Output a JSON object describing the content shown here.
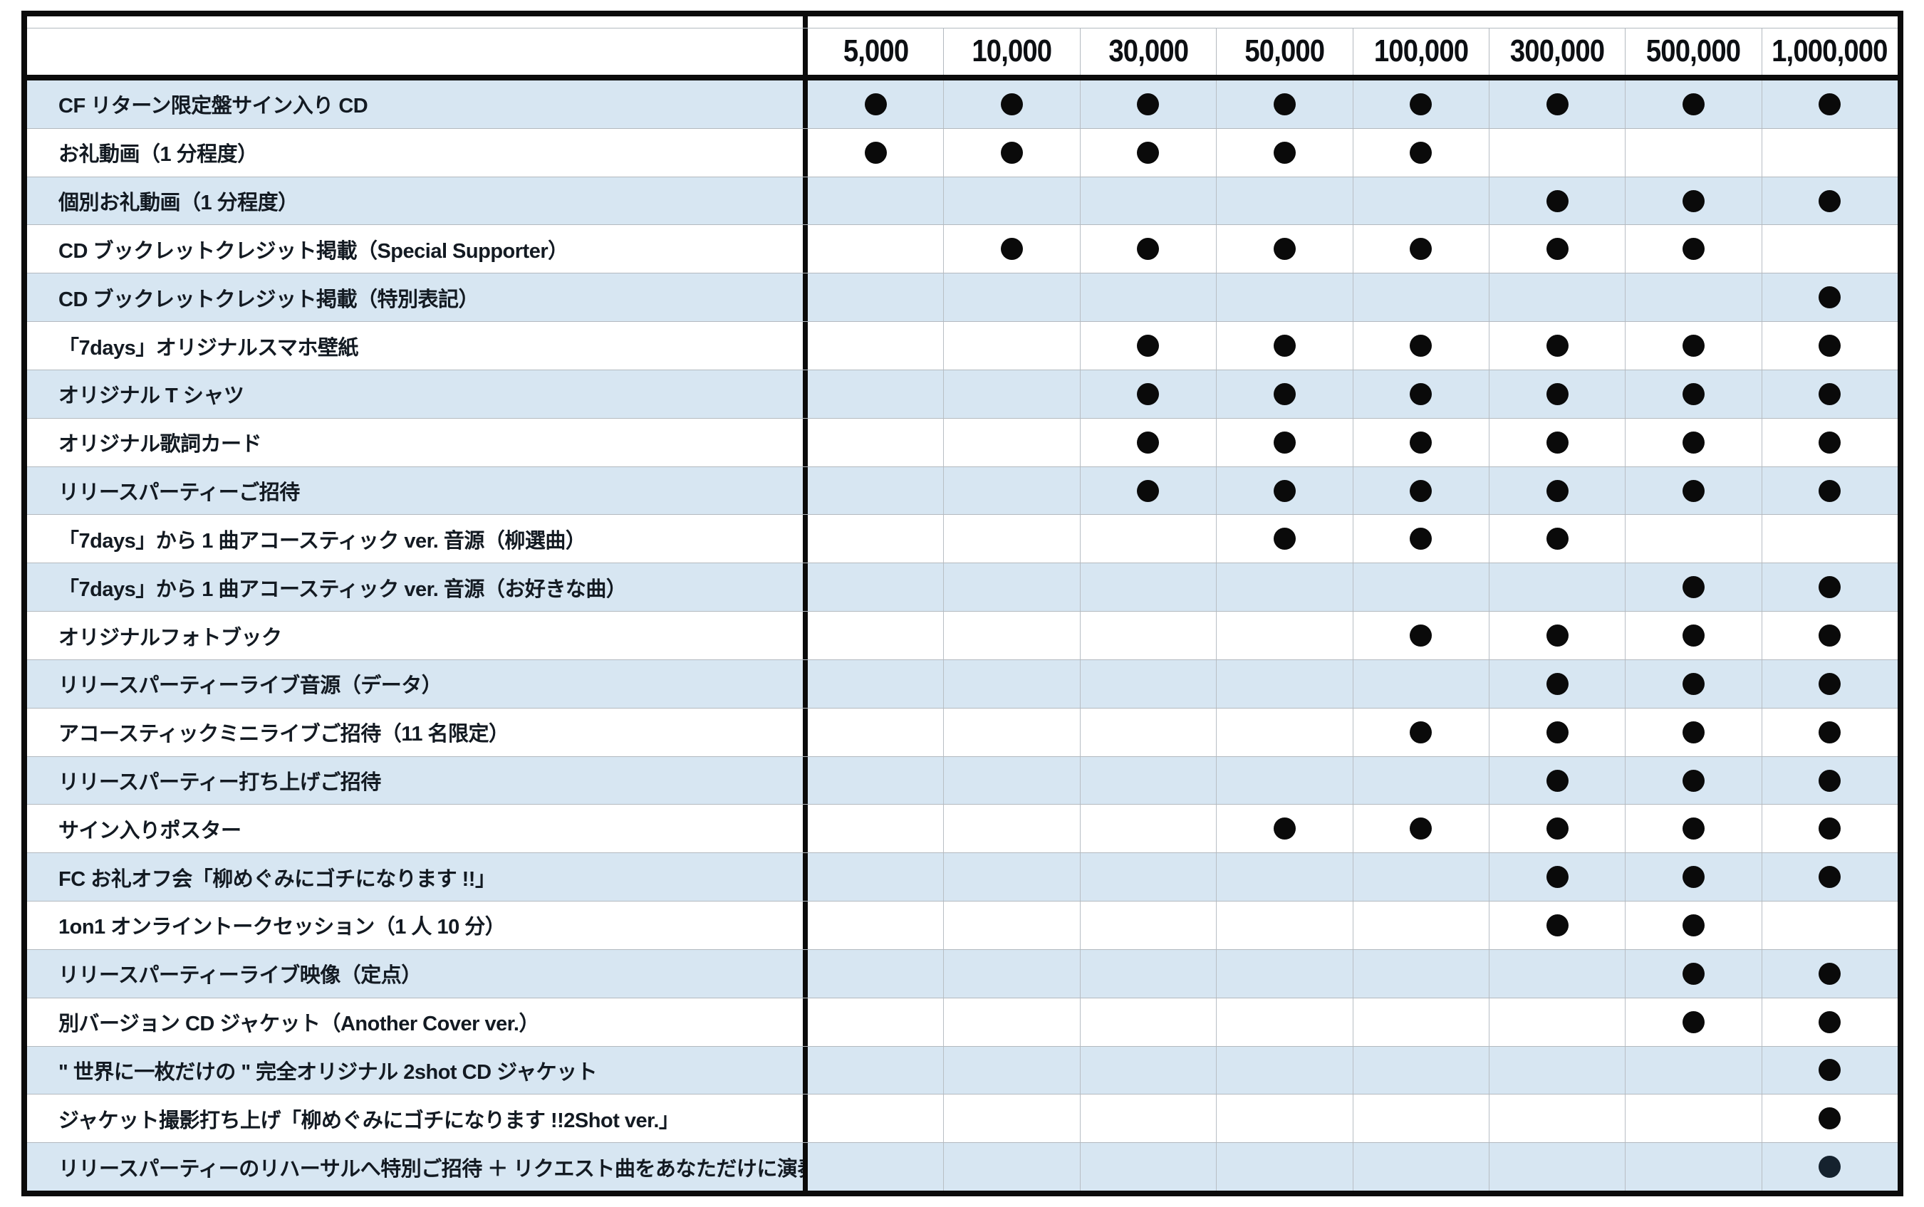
{
  "colors": {
    "stripe_blue": "#d7e6f2",
    "grid_line": "#b3b9bf",
    "outer_border": "#0b0b0b",
    "dot": "#0a0a0a",
    "last_row_dot": "#15222e",
    "label_text": "#131a22"
  },
  "table": {
    "corner_label": "",
    "columns": [
      "5,000",
      "10,000",
      "30,000",
      "50,000",
      "100,000",
      "300,000",
      "500,000",
      "1,000,000"
    ],
    "rows": [
      {
        "label": "CF リターン限定盤サイン入り CD",
        "dots": [
          1,
          1,
          1,
          1,
          1,
          1,
          1,
          1
        ]
      },
      {
        "label": "お礼動画（1 分程度）",
        "dots": [
          1,
          1,
          1,
          1,
          1,
          0,
          0,
          0
        ]
      },
      {
        "label": "個別お礼動画（1 分程度）",
        "dots": [
          0,
          0,
          0,
          0,
          0,
          1,
          1,
          1
        ]
      },
      {
        "label": "CD ブックレットクレジット掲載（Special Supporter）",
        "dots": [
          0,
          1,
          1,
          1,
          1,
          1,
          1,
          0
        ]
      },
      {
        "label": "CD ブックレットクレジット掲載（特別表記）",
        "dots": [
          0,
          0,
          0,
          0,
          0,
          0,
          0,
          1
        ]
      },
      {
        "label": "「7days」オリジナルスマホ壁紙",
        "dots": [
          0,
          0,
          1,
          1,
          1,
          1,
          1,
          1
        ]
      },
      {
        "label": "オリジナル T シャツ",
        "dots": [
          0,
          0,
          1,
          1,
          1,
          1,
          1,
          1
        ]
      },
      {
        "label": "オリジナル歌詞カード",
        "dots": [
          0,
          0,
          1,
          1,
          1,
          1,
          1,
          1
        ]
      },
      {
        "label": "リリースパーティーご招待",
        "dots": [
          0,
          0,
          1,
          1,
          1,
          1,
          1,
          1
        ]
      },
      {
        "label": "「7days」から 1 曲アコースティック ver. 音源（柳選曲）",
        "dots": [
          0,
          0,
          0,
          1,
          1,
          1,
          0,
          0
        ]
      },
      {
        "label": "「7days」から 1 曲アコースティック ver. 音源（お好きな曲）",
        "dots": [
          0,
          0,
          0,
          0,
          0,
          0,
          1,
          1
        ]
      },
      {
        "label": "オリジナルフォトブック",
        "dots": [
          0,
          0,
          0,
          0,
          1,
          1,
          1,
          1
        ]
      },
      {
        "label": "リリースパーティーライブ音源（データ）",
        "dots": [
          0,
          0,
          0,
          0,
          0,
          1,
          1,
          1
        ]
      },
      {
        "label": "アコースティックミニライブご招待（11 名限定）",
        "dots": [
          0,
          0,
          0,
          0,
          1,
          1,
          1,
          1
        ]
      },
      {
        "label": "リリースパーティー打ち上げご招待",
        "dots": [
          0,
          0,
          0,
          0,
          0,
          1,
          1,
          1
        ]
      },
      {
        "label": "サイン入りポスター",
        "dots": [
          0,
          0,
          0,
          1,
          1,
          1,
          1,
          1
        ]
      },
      {
        "label": "FC お礼オフ会「柳めぐみにゴチになります !!」",
        "dots": [
          0,
          0,
          0,
          0,
          0,
          1,
          1,
          1
        ]
      },
      {
        "label": "1on1 オンライントークセッション（1 人 10 分）",
        "dots": [
          0,
          0,
          0,
          0,
          0,
          1,
          1,
          0
        ]
      },
      {
        "label": "リリースパーティーライブ映像（定点）",
        "dots": [
          0,
          0,
          0,
          0,
          0,
          0,
          1,
          1
        ]
      },
      {
        "label": "別バージョン CD ジャケット（Another Cover ver.）",
        "dots": [
          0,
          0,
          0,
          0,
          0,
          0,
          1,
          1
        ]
      },
      {
        "label": "\" 世界に一枚だけの \" 完全オリジナル 2shot CD ジャケット",
        "dots": [
          0,
          0,
          0,
          0,
          0,
          0,
          0,
          1
        ]
      },
      {
        "label": "ジャケット撮影打ち上げ「柳めぐみにゴチになります !!2Shot ver.」",
        "dots": [
          0,
          0,
          0,
          0,
          0,
          0,
          0,
          1
        ]
      },
      {
        "label": "リリースパーティーのリハーサルへ特別ご招待 ＋ リクエスト曲をあなただけに演奏",
        "dots": [
          0,
          0,
          0,
          0,
          0,
          0,
          0,
          1
        ],
        "dot_color": "#15222e"
      }
    ]
  }
}
